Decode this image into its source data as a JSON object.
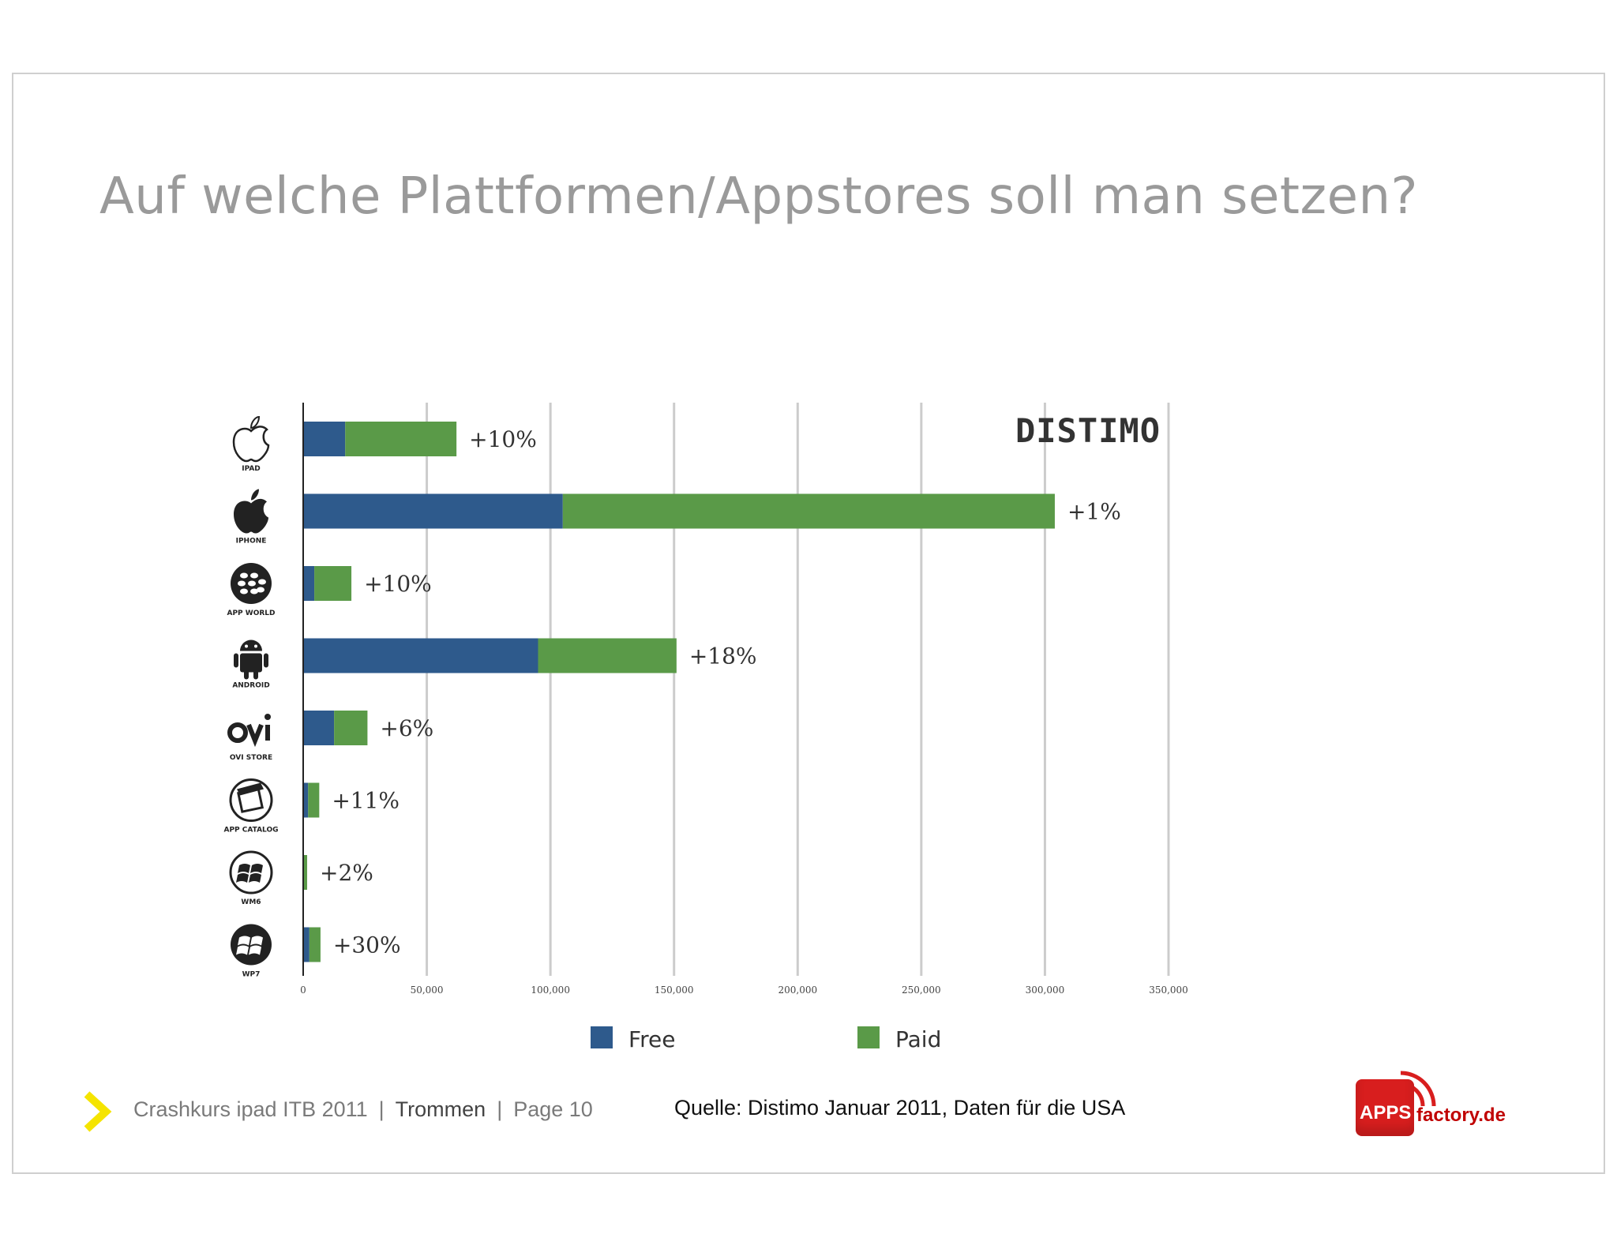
{
  "slide": {
    "title": "Auf welche Plattformen/Appstores soll man setzen?",
    "footer": {
      "course": "Crashkurs ipad ITB  2011",
      "separator": "|",
      "section": "Trommen",
      "page": "Page 10"
    },
    "source": "Quelle: Distimo Januar 2011,  Daten für die USA",
    "logo": {
      "brand_box": "APPS",
      "brand_text": "factory.de"
    },
    "accent_color": "#f5e400"
  },
  "chart_data": {
    "type": "bar",
    "orientation": "horizontal",
    "stacked": true,
    "watermark": "DISTIMO",
    "categories": [
      {
        "label": "IPAD",
        "icon": "apple-outline-icon"
      },
      {
        "label": "IPHONE",
        "icon": "apple-icon"
      },
      {
        "label": "APP WORLD",
        "icon": "blackberry-icon"
      },
      {
        "label": "ANDROID",
        "icon": "android-icon"
      },
      {
        "label": "OVI STORE",
        "icon": "ovi-icon"
      },
      {
        "label": "APP CATALOG",
        "icon": "palm-icon"
      },
      {
        "label": "WM6",
        "icon": "windows-icon"
      },
      {
        "label": "WP7",
        "icon": "windows-phone-icon"
      }
    ],
    "series": [
      {
        "name": "Free",
        "color": "#2e5a8c",
        "values": [
          17000,
          105000,
          4500,
          95000,
          12500,
          2000,
          300,
          2500
        ]
      },
      {
        "name": "Paid",
        "color": "#5a9a48",
        "values": [
          45000,
          199000,
          15000,
          56000,
          13500,
          4500,
          1300,
          4500
        ]
      }
    ],
    "annotations": [
      "+10%",
      "+1%",
      "+10%",
      "+18%",
      "+6%",
      "+11%",
      "+2%",
      "+30%"
    ],
    "xlim": [
      0,
      350000
    ],
    "xticks": [
      0,
      50000,
      100000,
      150000,
      200000,
      250000,
      300000,
      350000
    ],
    "xtick_labels": [
      "0",
      "50,000",
      "100,000",
      "150,000",
      "200,000",
      "250,000",
      "300,000",
      "350,000"
    ],
    "grid": true,
    "legend_position": "bottom"
  }
}
